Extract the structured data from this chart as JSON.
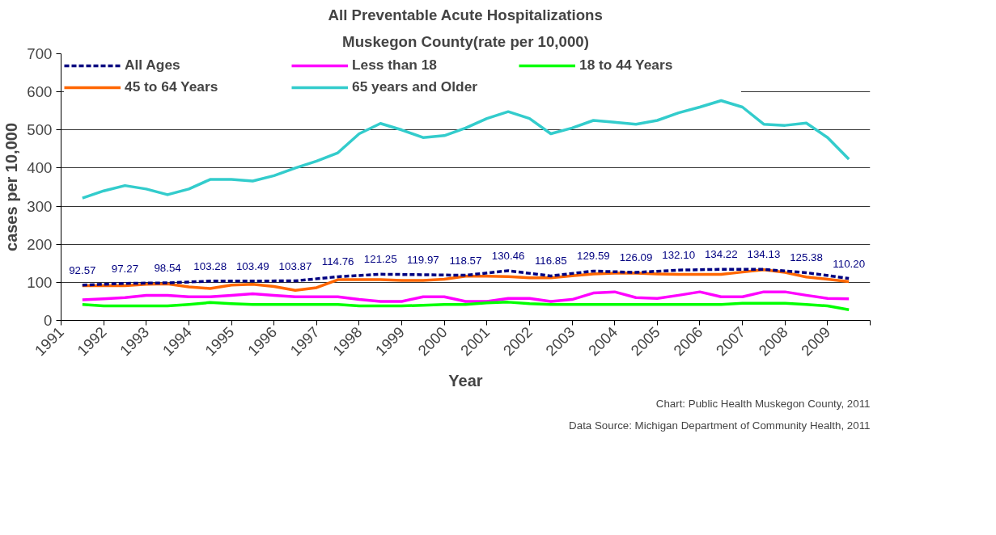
{
  "chart_data": {
    "type": "line",
    "title": "All Preventable Acute Hospitalizations",
    "subtitle": "Muskegon County(rate per 10,000)",
    "xlabel": "Year",
    "ylabel": "cases per 10,000",
    "x": [
      1991.5,
      1992,
      1992.5,
      1993,
      1993.5,
      1994,
      1994.5,
      1995,
      1995.5,
      1996,
      1996.5,
      1997,
      1997.5,
      1998,
      1998.5,
      1999,
      1999.5,
      2000,
      2000.5,
      2001,
      2001.5,
      2002,
      2002.5,
      2003,
      2003.5,
      2004,
      2004.5,
      2005,
      2005.5,
      2006,
      2006.5,
      2007,
      2007.5,
      2008,
      2008.5,
      2009,
      2009.5
    ],
    "series": [
      {
        "name": "All Ages",
        "color": "#000080",
        "line_style": "dashed",
        "data_labels": true,
        "x": [
          1991.5,
          1992.5,
          1993.5,
          1994.5,
          1995.5,
          1996.5,
          1997.5,
          1998.5,
          1999.5,
          2000.5,
          2001.5,
          2002.5,
          2003.5,
          2004.5,
          2005.5,
          2006.5,
          2007.5,
          2008.5,
          2009.5
        ],
        "values": [
          92.57,
          97.27,
          98.54,
          103.28,
          103.49,
          103.87,
          114.76,
          121.25,
          119.97,
          118.57,
          130.46,
          116.85,
          129.59,
          126.09,
          132.1,
          134.22,
          134.13,
          125.38,
          110.2
        ],
        "value_labels": [
          "92.57",
          "97.27",
          "98.54",
          "103.28",
          "103.49",
          "103.87",
          "114.76",
          "121.25",
          "119.97",
          "118.57",
          "130.46",
          "116.85",
          "129.59",
          "126.09",
          "132.10",
          "134.22",
          "134.13",
          "125.38",
          "110.20"
        ]
      },
      {
        "name": "Less than 18",
        "color": "#ff00ff",
        "values": [
          54,
          57,
          60,
          66,
          66,
          62,
          62,
          66,
          70,
          66,
          62,
          62,
          62,
          55,
          50,
          50,
          62,
          62,
          50,
          50,
          58,
          58,
          50,
          55,
          72,
          75,
          60,
          58,
          66,
          75,
          62,
          62,
          75,
          75,
          66,
          58,
          57
        ]
      },
      {
        "name": "18 to 44 Years",
        "color": "#00ff00",
        "values": [
          42,
          38,
          38,
          38,
          38,
          42,
          47,
          44,
          42,
          42,
          42,
          42,
          42,
          38,
          38,
          38,
          40,
          42,
          42,
          46,
          48,
          44,
          42,
          42,
          42,
          42,
          42,
          42,
          42,
          42,
          42,
          45,
          45,
          45,
          42,
          38,
          28
        ]
      },
      {
        "name": "45 to 64 Years",
        "color": "#ff6600",
        "values": [
          91,
          91,
          91,
          95,
          96,
          88,
          84,
          93,
          95,
          89,
          79,
          86,
          107,
          107,
          107,
          105,
          105,
          108,
          116,
          116,
          115,
          112,
          112,
          117,
          122,
          124,
          124,
          122,
          121,
          121,
          121,
          127,
          133,
          126,
          114,
          108,
          102
        ]
      },
      {
        "name": "65 years and Older",
        "color": "#33cccc",
        "values": [
          321,
          340,
          354,
          345,
          330,
          345,
          370,
          370,
          366,
          380,
          400,
          418,
          440,
          490,
          517,
          500,
          480,
          485,
          505,
          530,
          548,
          530,
          490,
          505,
          525,
          520,
          515,
          525,
          545,
          560,
          577,
          560,
          515,
          512,
          518,
          480,
          423
        ]
      }
    ],
    "xlim": [
      1991,
      2010
    ],
    "xticks": [
      1991,
      1992,
      1993,
      1994,
      1995,
      1996,
      1997,
      1998,
      1999,
      2000,
      2001,
      2002,
      2003,
      2004,
      2005,
      2006,
      2007,
      2008,
      2009,
      {
        "value": 2010,
        "label": null
      }
    ],
    "ylim": [
      0,
      700
    ],
    "yticks": [
      0,
      100,
      200,
      300,
      400,
      500,
      600,
      700
    ],
    "grid": "y",
    "legend": "top",
    "line_style": "solid",
    "marker": "none",
    "annotations": [
      "Chart: Public Health Muskegon County, 2011",
      "Data Source: Michigan Department of Community Health, 2011"
    ]
  }
}
